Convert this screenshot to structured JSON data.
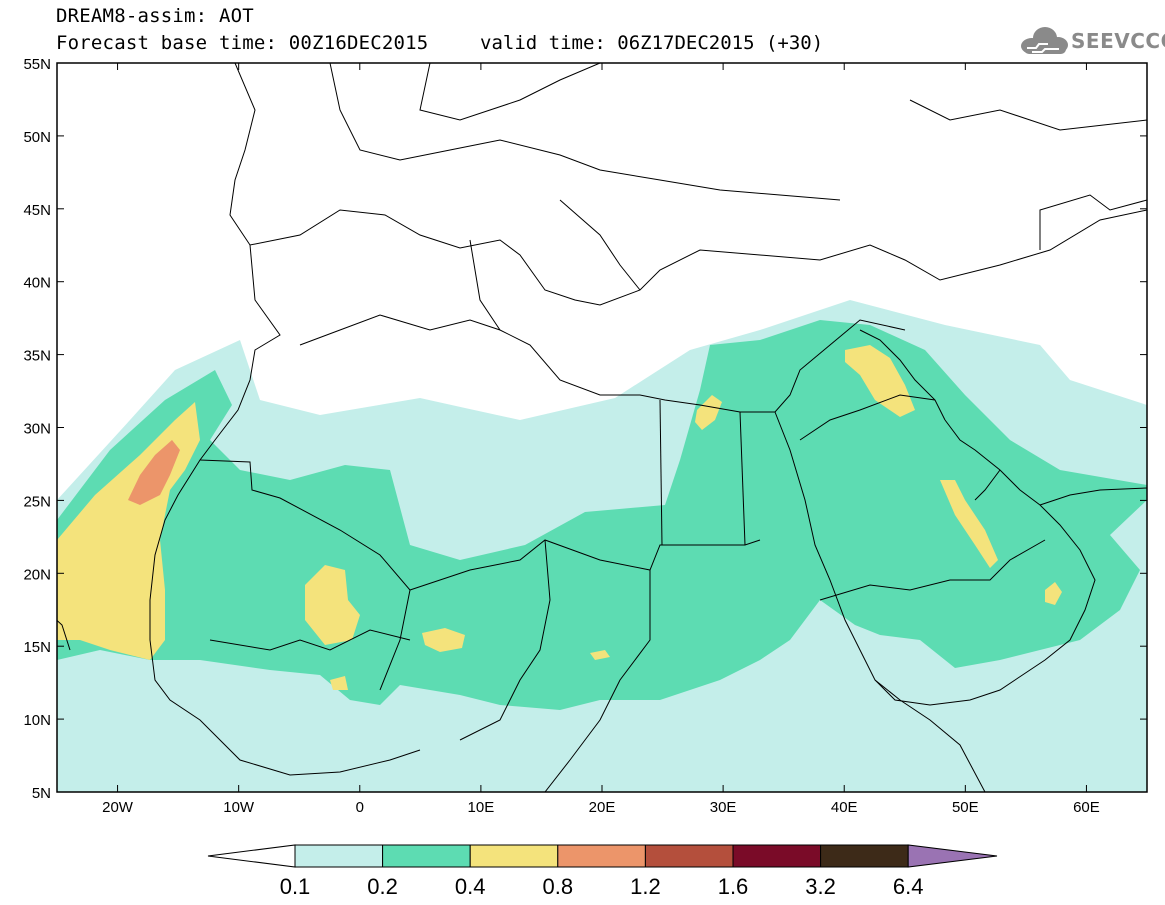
{
  "header": {
    "title": "DREAM8-assim: AOT",
    "base_time": "Forecast base time: 00Z16DEC2015",
    "valid_time": "valid time: 06Z17DEC2015 (+30)"
  },
  "logo": {
    "text": "SEEVCCC",
    "icon": "cloud-icon"
  },
  "map": {
    "lat_labels": [
      "55N",
      "50N",
      "45N",
      "40N",
      "35N",
      "30N",
      "25N",
      "20N",
      "15N",
      "10N",
      "5N"
    ],
    "lon_labels": [
      "20W",
      "10W",
      "0",
      "10E",
      "20E",
      "30E",
      "40E",
      "50E",
      "60E"
    ],
    "lat_range": [
      5,
      55
    ],
    "lon_range": [
      -25,
      65
    ]
  },
  "colorbar": {
    "labels": [
      "0.1",
      "0.2",
      "0.4",
      "0.8",
      "1.2",
      "1.6",
      "3.2",
      "6.4"
    ],
    "colors": [
      "#ffffff",
      "#c4eeea",
      "#5ddcb2",
      "#f4e37c",
      "#ec956a",
      "#b44f3c",
      "#7a0b28",
      "#3d2a18",
      "#9a73b3"
    ]
  },
  "fill_colors": {
    "level1": "#c4eeea",
    "level2": "#5ddcb2",
    "level3": "#f4e37c",
    "level4": "#ec956a"
  }
}
